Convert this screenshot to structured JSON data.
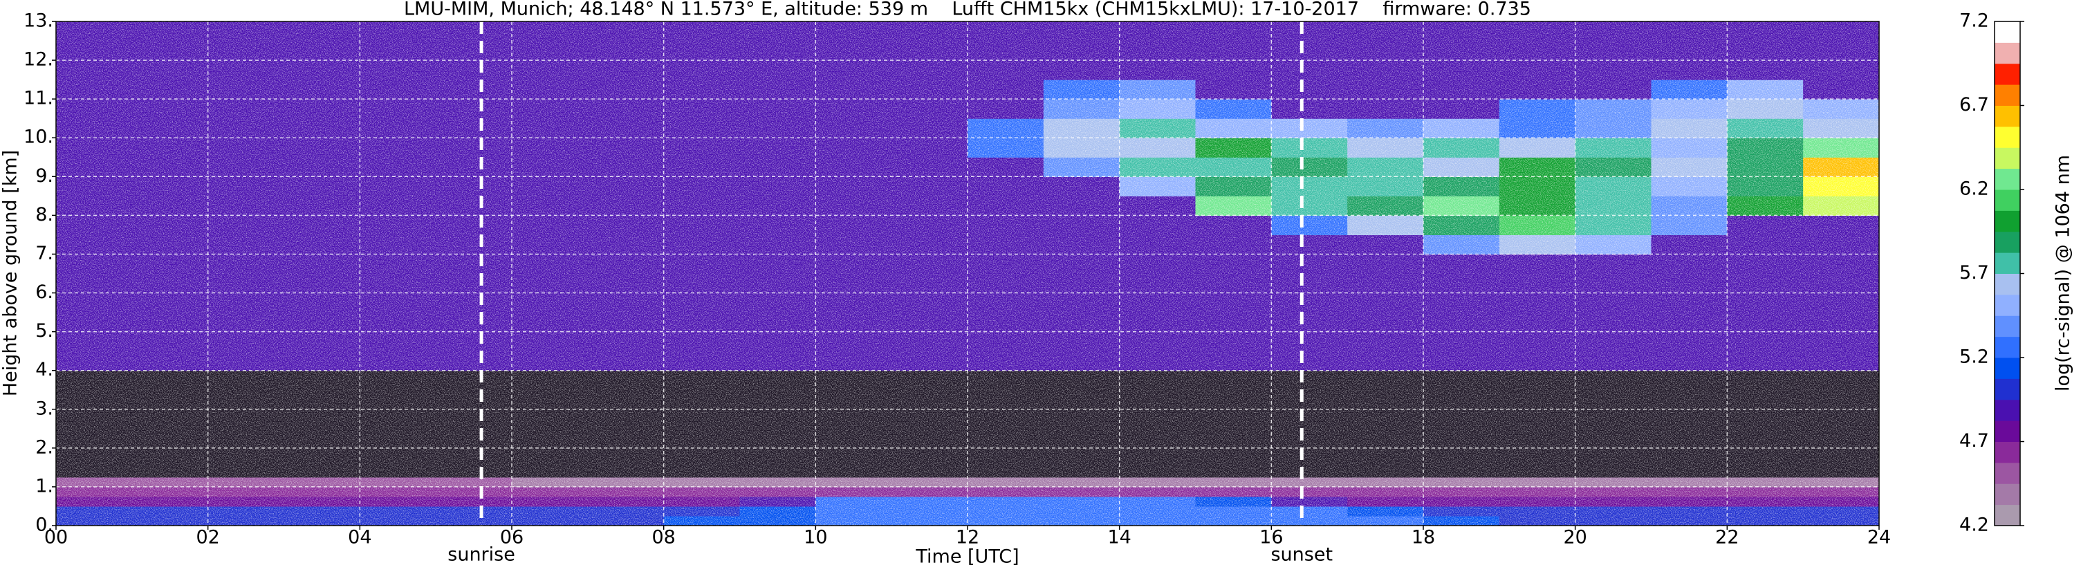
{
  "chart_data": {
    "type": "heatmap",
    "title": "LMU-MIM, Munich; 48.148° N 11.573° E, altitude: 539 m    Lufft CHM15kx (CHM15kxLMU): 17-10-2017    firmware: 0.735",
    "x_label": "Time [UTC]",
    "y_label": "Height above ground [km]",
    "colorbar_label": "log(rc-signal) @ 1064 nm",
    "xlim": [
      0,
      24
    ],
    "ylim": [
      0,
      13
    ],
    "xticks": [
      {
        "value": 0,
        "label": "00"
      },
      {
        "value": 2,
        "label": "02"
      },
      {
        "value": 4,
        "label": "04"
      },
      {
        "value": 6,
        "label": "06"
      },
      {
        "value": 8,
        "label": "08"
      },
      {
        "value": 10,
        "label": "10"
      },
      {
        "value": 12,
        "label": "12"
      },
      {
        "value": 14,
        "label": "14"
      },
      {
        "value": 16,
        "label": "16"
      },
      {
        "value": 18,
        "label": "18"
      },
      {
        "value": 20,
        "label": "20"
      },
      {
        "value": 22,
        "label": "22"
      },
      {
        "value": 24,
        "label": "24"
      }
    ],
    "yticks": [
      {
        "value": 0,
        "label": "0."
      },
      {
        "value": 1,
        "label": "1."
      },
      {
        "value": 2,
        "label": "2."
      },
      {
        "value": 3,
        "label": "3."
      },
      {
        "value": 4,
        "label": "4."
      },
      {
        "value": 5,
        "label": "5."
      },
      {
        "value": 6,
        "label": "6."
      },
      {
        "value": 7,
        "label": "7."
      },
      {
        "value": 8,
        "label": "8."
      },
      {
        "value": 9,
        "label": "9."
      },
      {
        "value": 10,
        "label": "10."
      },
      {
        "value": 11,
        "label": "11."
      },
      {
        "value": 12,
        "label": "12."
      },
      {
        "value": 13,
        "label": "13."
      }
    ],
    "clim": [
      4.2,
      7.2
    ],
    "cticks": [
      4.2,
      4.7,
      5.2,
      5.7,
      6.2,
      6.7,
      7.2
    ],
    "colorscale": [
      "#aa9aae",
      "#a47aa8",
      "#9c56a2",
      "#8a2a9a",
      "#6a0a9a",
      "#4a10b0",
      "#2030d0",
      "#0050f0",
      "#3070ff",
      "#6090ff",
      "#90b0ff",
      "#a8c0f0",
      "#40c0a8",
      "#18a060",
      "#10a030",
      "#40d060",
      "#70e890",
      "#c8f860",
      "#ffff30",
      "#ffc000",
      "#ff8000",
      "#ff2000",
      "#f0b0b0",
      "#ffffff"
    ],
    "under_color": "#1c1424",
    "grid": true,
    "annotations": [
      {
        "text": "sunrise",
        "x": 5.6
      },
      {
        "text": "sunset",
        "x": 16.4
      }
    ],
    "x_edges": [
      0,
      1,
      2,
      3,
      4,
      5,
      6,
      7,
      8,
      9,
      10,
      11,
      12,
      13,
      14,
      15,
      16,
      17,
      18,
      19,
      20,
      21,
      22,
      23,
      24
    ],
    "y_edges": [
      0,
      0.25,
      0.5,
      0.75,
      1,
      1.25,
      2,
      3,
      4,
      5,
      6,
      7,
      7.5,
      8,
      8.5,
      9,
      9.5,
      10,
      10.5,
      11,
      11.5,
      13
    ],
    "z": [
      [
        5.0,
        5.0,
        5.0,
        5.0,
        5.0,
        5.0,
        5.0,
        5.05,
        5.1,
        5.1,
        5.25,
        5.3,
        5.3,
        5.3,
        5.3,
        5.3,
        5.3,
        5.2,
        5.1,
        5.05,
        5.05,
        5.05,
        5.05,
        5.0
      ],
      [
        5.0,
        4.95,
        4.95,
        4.95,
        4.95,
        4.95,
        4.95,
        5.0,
        5.05,
        5.1,
        5.25,
        5.3,
        5.3,
        5.3,
        5.3,
        5.3,
        5.3,
        5.15,
        5.05,
        5.0,
        5.0,
        5.0,
        5.0,
        5.0
      ],
      [
        4.8,
        4.8,
        4.8,
        4.8,
        4.8,
        4.8,
        4.75,
        4.75,
        4.8,
        4.85,
        5.2,
        5.25,
        5.25,
        5.25,
        5.2,
        5.15,
        4.9,
        4.8,
        4.75,
        4.75,
        4.75,
        4.75,
        4.75,
        4.75
      ],
      [
        4.6,
        4.6,
        4.6,
        4.6,
        4.6,
        4.6,
        4.6,
        4.6,
        4.6,
        4.6,
        4.6,
        4.6,
        4.6,
        4.6,
        4.6,
        4.6,
        4.6,
        4.6,
        4.6,
        4.6,
        4.6,
        4.6,
        4.6,
        4.6
      ],
      [
        4.45,
        4.45,
        4.45,
        4.45,
        4.45,
        4.45,
        4.35,
        4.35,
        4.35,
        4.35,
        4.35,
        4.35,
        4.35,
        4.35,
        4.35,
        4.35,
        4.35,
        4.35,
        4.35,
        4.35,
        4.35,
        4.35,
        4.35,
        4.35
      ],
      [
        4.15,
        4.15,
        4.15,
        4.15,
        4.15,
        4.15,
        4.15,
        4.15,
        4.15,
        4.15,
        4.15,
        4.15,
        4.15,
        4.15,
        4.15,
        4.15,
        4.15,
        4.15,
        4.15,
        4.15,
        4.15,
        4.15,
        4.15,
        4.15
      ],
      [
        4.1,
        4.1,
        4.1,
        4.1,
        4.1,
        4.1,
        4.1,
        4.1,
        4.1,
        4.1,
        4.1,
        4.1,
        4.1,
        4.1,
        4.1,
        4.1,
        4.1,
        4.1,
        4.1,
        4.1,
        4.1,
        4.1,
        4.1,
        4.1
      ],
      [
        4.1,
        4.1,
        4.1,
        4.1,
        4.1,
        4.1,
        4.1,
        4.1,
        4.1,
        4.1,
        4.1,
        4.1,
        4.1,
        4.1,
        4.1,
        4.1,
        4.1,
        4.1,
        4.1,
        4.1,
        4.1,
        4.1,
        4.1,
        4.1
      ],
      [
        4.85,
        4.85,
        4.85,
        4.85,
        4.85,
        4.85,
        4.85,
        4.85,
        4.85,
        4.85,
        4.85,
        4.85,
        4.85,
        4.85,
        4.85,
        4.85,
        4.85,
        4.85,
        4.85,
        4.85,
        4.85,
        4.85,
        4.85,
        4.85
      ],
      [
        4.85,
        4.85,
        4.85,
        4.85,
        4.85,
        4.85,
        4.85,
        4.85,
        4.85,
        4.85,
        4.85,
        4.85,
        4.85,
        4.85,
        4.85,
        4.85,
        4.85,
        4.85,
        4.85,
        4.85,
        4.85,
        4.85,
        4.85,
        4.85
      ],
      [
        4.85,
        4.85,
        4.85,
        4.85,
        4.85,
        4.85,
        4.85,
        4.85,
        4.85,
        4.85,
        4.85,
        4.85,
        4.85,
        4.85,
        4.85,
        4.85,
        4.85,
        4.85,
        4.85,
        4.85,
        4.85,
        4.85,
        4.85,
        4.85
      ],
      [
        4.85,
        4.85,
        4.85,
        4.85,
        4.85,
        4.85,
        4.85,
        4.85,
        4.85,
        4.85,
        4.85,
        4.85,
        4.85,
        4.85,
        4.85,
        4.85,
        4.85,
        4.85,
        5.4,
        5.6,
        5.5,
        4.85,
        4.85,
        4.85
      ],
      [
        4.85,
        4.85,
        4.85,
        4.85,
        4.85,
        4.85,
        4.85,
        4.85,
        4.85,
        4.85,
        4.85,
        4.85,
        4.85,
        4.85,
        4.85,
        4.85,
        5.3,
        5.6,
        5.9,
        6.1,
        5.8,
        5.4,
        4.85,
        4.85
      ],
      [
        4.85,
        4.85,
        4.85,
        4.85,
        4.85,
        4.85,
        4.85,
        4.85,
        4.85,
        4.85,
        4.85,
        4.85,
        4.85,
        4.85,
        4.85,
        6.3,
        5.7,
        5.9,
        6.2,
        6.0,
        5.8,
        5.4,
        6.0,
        6.4
      ],
      [
        4.85,
        4.85,
        4.85,
        4.85,
        4.85,
        4.85,
        4.85,
        4.85,
        4.85,
        4.85,
        4.85,
        4.85,
        4.85,
        4.85,
        5.5,
        5.9,
        5.8,
        5.8,
        5.9,
        6.0,
        5.8,
        5.5,
        5.9,
        6.5
      ],
      [
        4.85,
        4.85,
        4.85,
        4.85,
        4.85,
        4.85,
        4.85,
        4.85,
        4.85,
        4.85,
        4.85,
        4.85,
        4.85,
        5.4,
        5.8,
        5.8,
        5.9,
        5.7,
        5.6,
        6.0,
        5.9,
        5.6,
        5.9,
        6.6
      ],
      [
        4.85,
        4.85,
        4.85,
        4.85,
        4.85,
        4.85,
        4.85,
        4.85,
        4.85,
        4.85,
        4.85,
        4.85,
        5.3,
        5.6,
        5.6,
        6.0,
        5.8,
        5.6,
        5.8,
        5.6,
        5.8,
        5.5,
        5.9,
        6.2
      ],
      [
        4.85,
        4.85,
        4.85,
        4.85,
        4.85,
        4.85,
        4.85,
        4.85,
        4.85,
        4.85,
        4.85,
        4.85,
        5.3,
        5.6,
        5.7,
        5.5,
        5.5,
        5.4,
        5.5,
        5.3,
        5.4,
        5.6,
        5.7,
        5.6
      ],
      [
        4.85,
        4.85,
        4.85,
        4.85,
        4.85,
        4.85,
        4.85,
        4.85,
        4.85,
        4.85,
        4.85,
        4.85,
        4.85,
        5.4,
        5.5,
        5.3,
        4.85,
        4.85,
        4.85,
        5.3,
        5.4,
        5.5,
        5.6,
        5.5
      ],
      [
        4.85,
        4.85,
        4.85,
        4.85,
        4.85,
        4.85,
        4.85,
        4.85,
        4.85,
        4.85,
        4.85,
        4.85,
        4.85,
        5.3,
        5.4,
        4.85,
        4.85,
        4.85,
        4.85,
        4.85,
        4.85,
        5.3,
        5.5,
        4.85
      ],
      [
        4.85,
        4.85,
        4.85,
        4.85,
        4.85,
        4.85,
        4.85,
        4.85,
        4.85,
        4.85,
        4.85,
        4.85,
        4.85,
        4.85,
        4.85,
        4.85,
        4.85,
        4.85,
        4.85,
        4.85,
        4.85,
        4.85,
        4.85,
        4.85
      ]
    ]
  }
}
